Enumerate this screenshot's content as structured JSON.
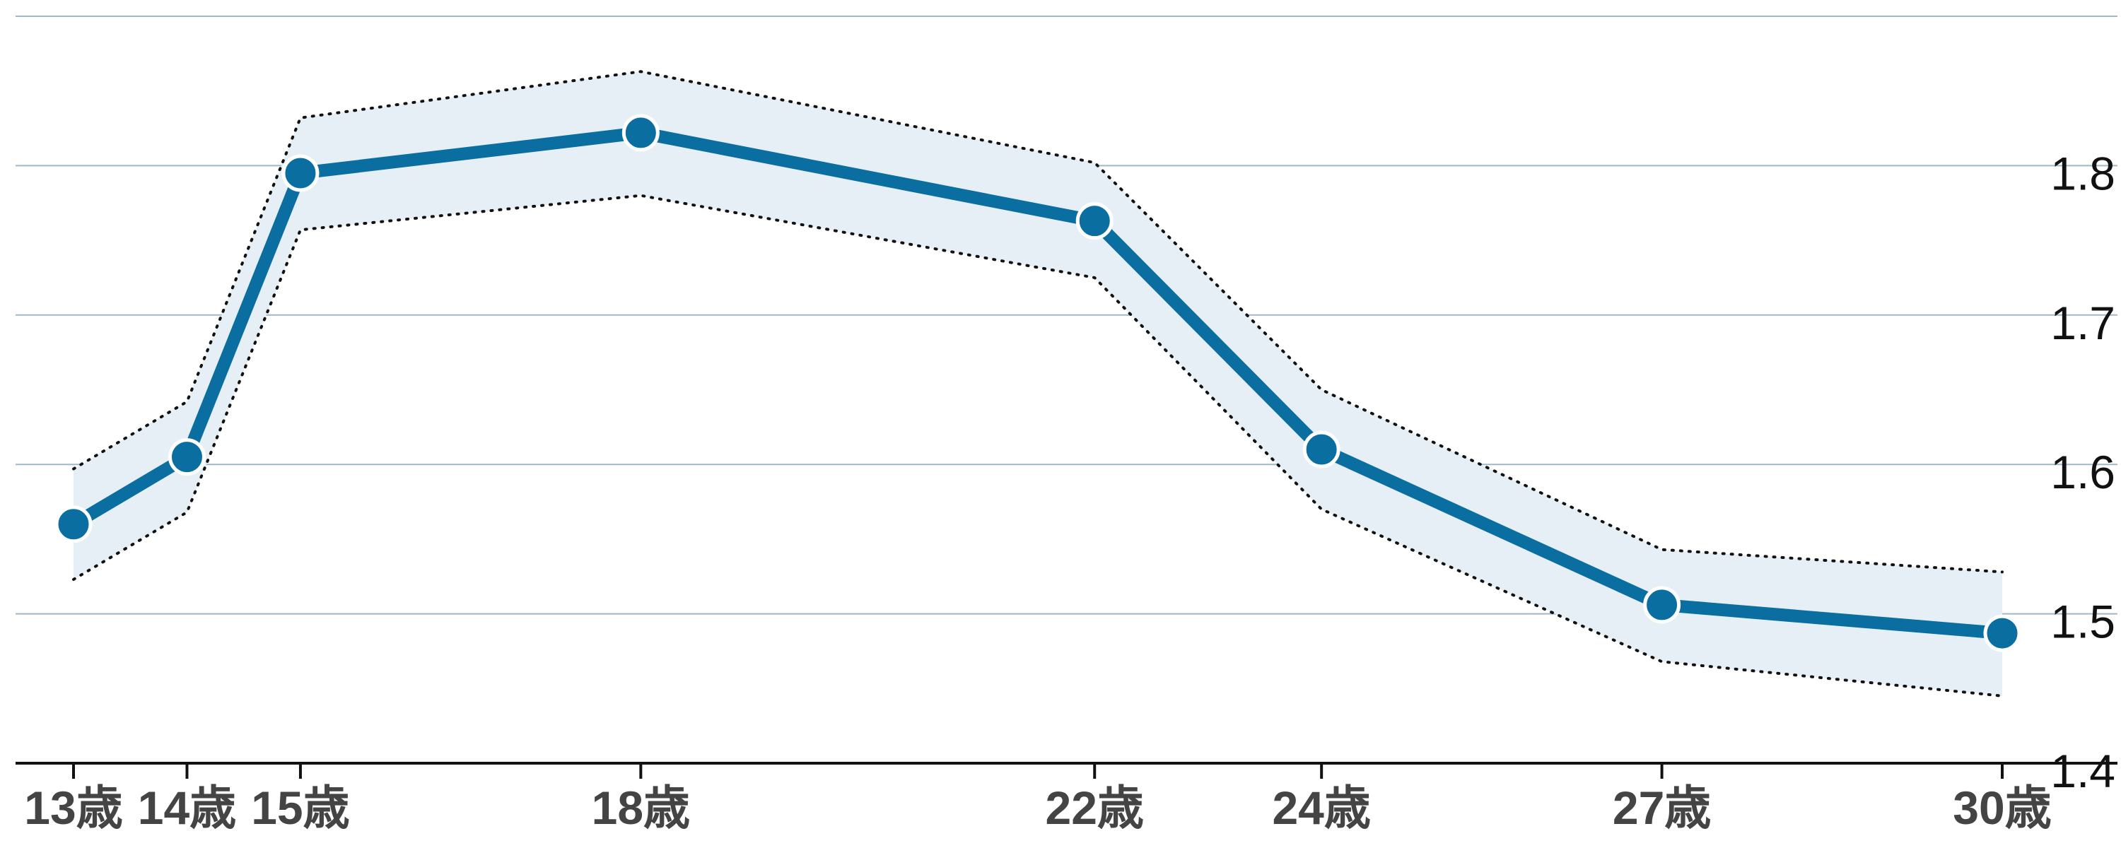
{
  "chart_data": {
    "type": "line",
    "title": "",
    "xlabel": "",
    "ylabel": "",
    "x": [
      13,
      14,
      15,
      18,
      22,
      24,
      27,
      30
    ],
    "x_tick_labels": [
      "13歳",
      "14歳",
      "15歳",
      "18歳",
      "22歳",
      "24歳",
      "27歳",
      "30歳"
    ],
    "xlim": [
      12.5,
      31
    ],
    "ylim": [
      1.4,
      1.9
    ],
    "y_ticks": [
      1.4,
      1.5,
      1.6,
      1.7,
      1.8
    ],
    "y_tick_labels": [
      "1.4",
      "1.5",
      "1.6",
      "1.7",
      "1.8"
    ],
    "y_axis_position": "right",
    "grid": true,
    "series": [
      {
        "values": [
          1.56,
          1.605,
          1.795,
          1.822,
          1.763,
          1.61,
          1.506,
          1.487
        ],
        "upper": [
          1.597,
          1.642,
          1.832,
          1.863,
          1.802,
          1.65,
          1.543,
          1.528
        ],
        "lower": [
          1.523,
          1.568,
          1.757,
          1.78,
          1.725,
          1.57,
          1.468,
          1.445
        ]
      }
    ],
    "colors": {
      "line": "#0a6fa0",
      "band": "#e6eff5",
      "grid": "#9fb8c6",
      "axis": "#111111",
      "bound": "#111111"
    }
  }
}
